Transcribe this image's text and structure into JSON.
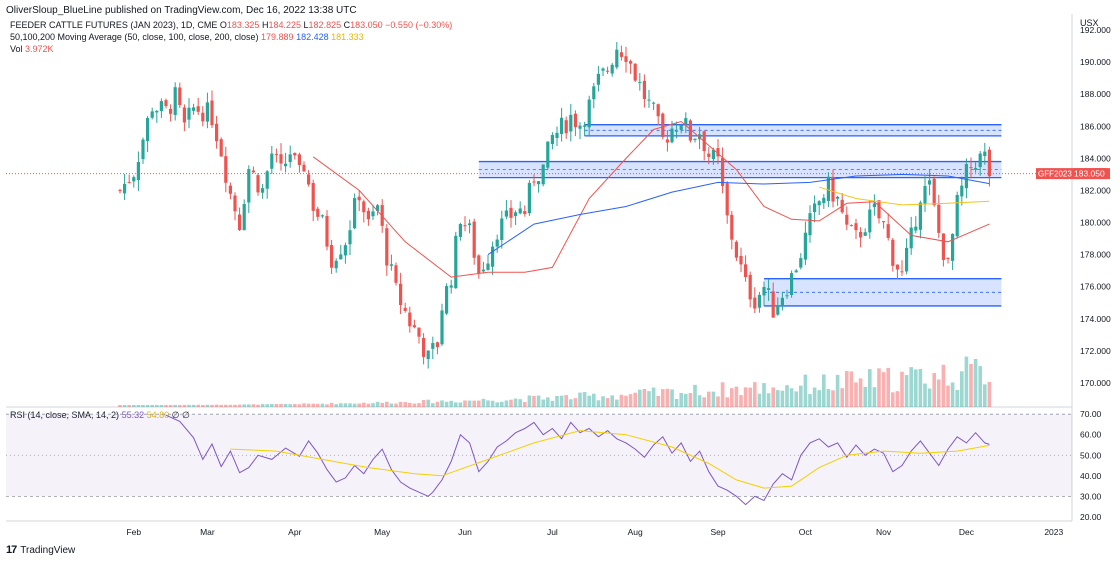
{
  "header": {
    "published": "OliverSloup_BlueLine published on TradingView.com, Dec 16, 2022 13:38 UTC"
  },
  "legend": {
    "symbol": "FEEDER CATTLE FUTURES (JAN 2023), 1D, CME",
    "o_label": "O",
    "o": "183.325",
    "h_label": "H",
    "h": "184.225",
    "l_label": "L",
    "l": "182.825",
    "c_label": "C",
    "c": "183.050",
    "change": "−0.550 (−0.30%)",
    "ma_label": "50,100,200 Moving Average (50, close, 100, close, 200, close)",
    "ma1": "179.889",
    "ma2": "182.428",
    "ma3": "181.333",
    "vol_label": "Vol",
    "vol": "3.972K",
    "rsi_label": "RSI (14, close, SMA, 14, 2)",
    "rsi": "55.32",
    "rsi_ma": "54.80",
    "rsi_extra": "∅ ∅"
  },
  "currency": "USX",
  "price_tag": {
    "symbol": "GFF2023",
    "value": "183.050"
  },
  "footer": {
    "brand": "TradingView",
    "logo": "tradingview-logo-icon"
  },
  "colors": {
    "up": "#26a69a",
    "down": "#ef5350",
    "band": "#2962ff",
    "ma50": "#ef5350",
    "ma100": "#2962ff",
    "ma200": "#f5c518",
    "rsi": "#7e57c2",
    "rsi_ma": "#f5d000"
  },
  "chart_data": [
    {
      "type": "candlestick",
      "title": "FEEDER CATTLE FUTURES (JAN 2023), 1D, CME",
      "x_labels": [
        "Feb",
        "Mar",
        "Apr",
        "May",
        "Jun",
        "Jul",
        "Aug",
        "Sep",
        "Oct",
        "Nov",
        "Dec",
        "2023"
      ],
      "y_ticks": [
        "192.000",
        "190.000",
        "188.000",
        "186.000",
        "184.000",
        "182.000",
        "180.000",
        "178.000",
        "176.000",
        "174.000",
        "172.000",
        "170.000"
      ],
      "ylim": [
        168.5,
        193
      ],
      "last_price": 183.05,
      "price_path": [
        [
          0,
          182.0
        ],
        [
          3,
          183.2
        ],
        [
          7,
          187.3
        ],
        [
          10,
          186.9
        ],
        [
          12,
          187.8
        ],
        [
          14,
          185.9
        ],
        [
          16,
          187.1
        ],
        [
          18,
          187.0
        ],
        [
          20,
          186.6
        ],
        [
          22,
          184.5
        ],
        [
          24,
          181.8
        ],
        [
          26,
          180.0
        ],
        [
          28,
          183.4
        ],
        [
          31,
          182.0
        ],
        [
          33,
          184.3
        ],
        [
          35,
          183.1
        ],
        [
          37,
          184.4
        ],
        [
          39,
          182.9
        ],
        [
          40,
          183.6
        ],
        [
          42,
          181.1
        ],
        [
          44,
          179.9
        ],
        [
          46,
          177.8
        ],
        [
          49,
          178.9
        ],
        [
          52,
          181.9
        ],
        [
          54,
          179.8
        ],
        [
          56,
          181.0
        ],
        [
          58,
          177.9
        ],
        [
          60,
          175.7
        ],
        [
          63,
          173.8
        ],
        [
          65,
          172.9
        ],
        [
          67,
          171.5
        ],
        [
          69,
          172.5
        ],
        [
          70,
          174.8
        ],
        [
          72,
          176.7
        ],
        [
          74,
          180.4
        ],
        [
          76,
          179.4
        ],
        [
          78,
          176.9
        ],
        [
          80,
          178.0
        ],
        [
          82,
          179.6
        ],
        [
          84,
          180.1
        ],
        [
          86,
          180.8
        ],
        [
          88,
          180.7
        ],
        [
          90,
          182.9
        ],
        [
          92,
          183.4
        ],
        [
          94,
          185.3
        ],
        [
          96,
          185.9
        ],
        [
          98,
          186.6
        ],
        [
          100,
          186.2
        ],
        [
          102,
          187.3
        ],
        [
          104,
          188.8
        ],
        [
          106,
          189.6
        ],
        [
          108,
          191.0
        ],
        [
          110,
          190.6
        ],
        [
          112,
          189.2
        ],
        [
          114,
          187.9
        ],
        [
          116,
          186.8
        ],
        [
          118,
          185.1
        ],
        [
          120,
          185.9
        ],
        [
          122,
          186.5
        ],
        [
          124,
          185.4
        ],
        [
          126,
          185.7
        ],
        [
          128,
          184.2
        ],
        [
          130,
          183.7
        ],
        [
          132,
          180.2
        ],
        [
          134,
          178.1
        ],
        [
          136,
          176.1
        ],
        [
          138,
          175.2
        ],
        [
          140,
          176.0
        ],
        [
          142,
          174.6
        ],
        [
          144,
          175.6
        ],
        [
          146,
          176.6
        ],
        [
          148,
          178.1
        ],
        [
          150,
          180.0
        ],
        [
          152,
          181.3
        ],
        [
          154,
          182.2
        ],
        [
          156,
          181.4
        ],
        [
          158,
          179.6
        ],
        [
          160,
          179.0
        ],
        [
          162,
          179.9
        ],
        [
          164,
          180.7
        ],
        [
          166,
          179.8
        ],
        [
          168,
          177.9
        ],
        [
          170,
          176.7
        ],
        [
          172,
          179.0
        ],
        [
          174,
          181.8
        ],
        [
          176,
          182.2
        ],
        [
          178,
          179.3
        ],
        [
          180,
          177.2
        ],
        [
          182,
          181.1
        ],
        [
          184,
          183.0
        ],
        [
          186,
          183.9
        ],
        [
          188,
          184.1
        ],
        [
          189,
          183.05
        ]
      ],
      "bands": [
        {
          "top": 186.1,
          "bottom": 185.4,
          "from": 101,
          "to": 189
        },
        {
          "top": 183.8,
          "bottom": 182.8,
          "from": 78,
          "to": 189
        },
        {
          "top": 176.5,
          "bottom": 174.8,
          "from": 140,
          "to": 189
        }
      ],
      "ma50_path": [
        [
          42,
          184.1
        ],
        [
          52,
          182.0
        ],
        [
          62,
          178.8
        ],
        [
          72,
          176.6
        ],
        [
          80,
          176.9
        ],
        [
          88,
          176.9
        ],
        [
          94,
          177.2
        ],
        [
          102,
          181.5
        ],
        [
          110,
          184.0
        ],
        [
          116,
          185.8
        ],
        [
          122,
          186.3
        ],
        [
          128,
          184.8
        ],
        [
          134,
          183.3
        ],
        [
          140,
          181.0
        ],
        [
          146,
          180.2
        ],
        [
          152,
          180.1
        ],
        [
          158,
          181.2
        ],
        [
          164,
          181.3
        ],
        [
          172,
          179.2
        ],
        [
          180,
          178.8
        ],
        [
          189,
          179.9
        ]
      ],
      "ma100_path": [
        [
          80,
          178.0
        ],
        [
          90,
          179.9
        ],
        [
          100,
          180.5
        ],
        [
          110,
          181.0
        ],
        [
          120,
          181.9
        ],
        [
          130,
          182.5
        ],
        [
          140,
          182.4
        ],
        [
          150,
          182.5
        ],
        [
          160,
          182.9
        ],
        [
          170,
          183.0
        ],
        [
          180,
          182.9
        ],
        [
          189,
          182.43
        ]
      ],
      "ma200_path": [
        [
          152,
          182.2
        ],
        [
          160,
          181.5
        ],
        [
          170,
          181.1
        ],
        [
          180,
          181.2
        ],
        [
          189,
          181.33
        ]
      ]
    },
    {
      "type": "line",
      "title": "RSI (14, close, SMA, 14, 2)",
      "y_ticks": [
        "70.00",
        "60.00",
        "50.00",
        "40.00",
        "30.00",
        "20.00"
      ],
      "ylim": [
        18,
        73
      ],
      "series": [
        {
          "name": "RSI",
          "values": [
            [
              10,
              69.5
            ],
            [
              13,
              66.5
            ],
            [
              16,
              58.5
            ],
            [
              18,
              48
            ],
            [
              20,
              55.5
            ],
            [
              22,
              44.5
            ],
            [
              24,
              52
            ],
            [
              26,
              41.5
            ],
            [
              28,
              44
            ],
            [
              30,
              50
            ],
            [
              33,
              48
            ],
            [
              36,
              53.5
            ],
            [
              39,
              49.5
            ],
            [
              41,
              57
            ],
            [
              43,
              51
            ],
            [
              45,
              43
            ],
            [
              47,
              37
            ],
            [
              49,
              39
            ],
            [
              51,
              45
            ],
            [
              53,
              41
            ],
            [
              55,
              48
            ],
            [
              57,
              53
            ],
            [
              59,
              43
            ],
            [
              61,
              37
            ],
            [
              63,
              34
            ],
            [
              65,
              32
            ],
            [
              67,
              30
            ],
            [
              68,
              32
            ],
            [
              70,
              38
            ],
            [
              72,
              47
            ],
            [
              74,
              60
            ],
            [
              76,
              56
            ],
            [
              78,
              42
            ],
            [
              80,
              47
            ],
            [
              82,
              54
            ],
            [
              84,
              57
            ],
            [
              86,
              61
            ],
            [
              88,
              63
            ],
            [
              90,
              66
            ],
            [
              92,
              60
            ],
            [
              94,
              63
            ],
            [
              96,
              58
            ],
            [
              98,
              66
            ],
            [
              100,
              61
            ],
            [
              102,
              63
            ],
            [
              104,
              59
            ],
            [
              106,
              62
            ],
            [
              108,
              58
            ],
            [
              110,
              56
            ],
            [
              112,
              53
            ],
            [
              114,
              49
            ],
            [
              116,
              55
            ],
            [
              118,
              59
            ],
            [
              120,
              51
            ],
            [
              122,
              56
            ],
            [
              124,
              47
            ],
            [
              126,
              52
            ],
            [
              128,
              42
            ],
            [
              130,
              35
            ],
            [
              132,
              33
            ],
            [
              134,
              30
            ],
            [
              136,
              26
            ],
            [
              138,
              30
            ],
            [
              140,
              28
            ],
            [
              142,
              36
            ],
            [
              144,
              41
            ],
            [
              146,
              38
            ],
            [
              148,
              50
            ],
            [
              150,
              56
            ],
            [
              152,
              58
            ],
            [
              154,
              54
            ],
            [
              156,
              56
            ],
            [
              158,
              49
            ],
            [
              160,
              55
            ],
            [
              162,
              50
            ],
            [
              164,
              53
            ],
            [
              166,
              51
            ],
            [
              168,
              42
            ],
            [
              170,
              45
            ],
            [
              172,
              52
            ],
            [
              174,
              57
            ],
            [
              176,
              51
            ],
            [
              178,
              45
            ],
            [
              180,
              53
            ],
            [
              182,
              59
            ],
            [
              184,
              56
            ],
            [
              186,
              61
            ],
            [
              188,
              56
            ],
            [
              189,
              55.3
            ]
          ]
        },
        {
          "name": "RSI-based MA",
          "values": [
            [
              24,
              53
            ],
            [
              34,
              52
            ],
            [
              44,
              48
            ],
            [
              54,
              44
            ],
            [
              64,
              41
            ],
            [
              70,
              40
            ],
            [
              80,
              48
            ],
            [
              90,
              56
            ],
            [
              100,
              62
            ],
            [
              110,
              60
            ],
            [
              120,
              54
            ],
            [
              128,
              46
            ],
            [
              134,
              38
            ],
            [
              140,
              34
            ],
            [
              146,
              35
            ],
            [
              152,
              44
            ],
            [
              158,
              50
            ],
            [
              166,
              52
            ],
            [
              174,
              51
            ],
            [
              182,
              52
            ],
            [
              189,
              54.8
            ]
          ]
        }
      ]
    }
  ]
}
